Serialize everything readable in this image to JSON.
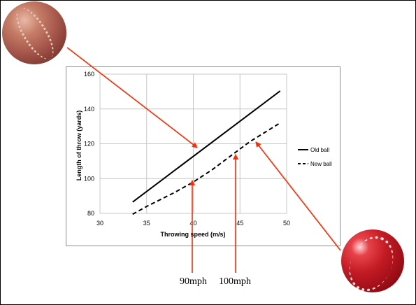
{
  "chart_data": {
    "type": "line",
    "xlabel": "Throwing speed (m/s)",
    "ylabel": "Length of throw (yards)",
    "xlim": [
      30,
      50
    ],
    "ylim": [
      80,
      160
    ],
    "x_ticks": [
      30,
      35,
      40,
      45,
      50
    ],
    "y_ticks": [
      80,
      100,
      120,
      140,
      160
    ],
    "grid": true,
    "legend_position": "right",
    "series": [
      {
        "name": "Old ball",
        "style": "solid",
        "color": "#000000",
        "points": [
          [
            33.5,
            86.5
          ],
          [
            49.3,
            150.3
          ]
        ]
      },
      {
        "name": "New ball",
        "style": "dashed",
        "color": "#000000",
        "points": [
          [
            33.5,
            79.5
          ],
          [
            35,
            84
          ],
          [
            38,
            92
          ],
          [
            40,
            98
          ],
          [
            42,
            105
          ],
          [
            44,
            113
          ],
          [
            46,
            121
          ],
          [
            49.3,
            132
          ]
        ]
      }
    ]
  },
  "annotations": {
    "label_90mph": "90mph",
    "label_100mph": "100mph",
    "arrow_color": "#ff2a00"
  },
  "images": {
    "old_ball": "old-cricket-ball",
    "new_ball": "new-cricket-ball"
  }
}
